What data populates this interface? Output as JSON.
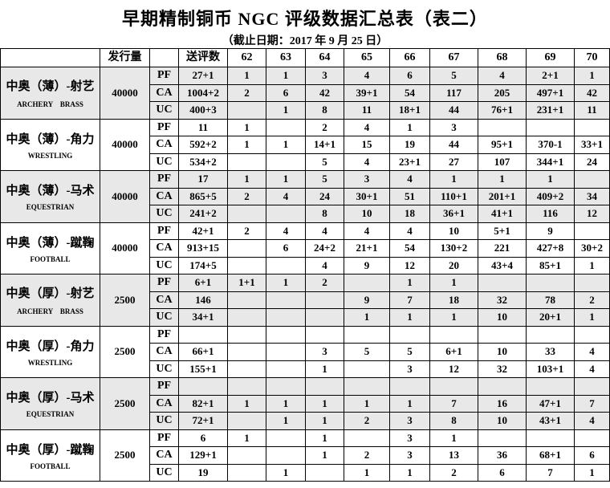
{
  "title": "早期精制铜币 NGC 评级数据汇总表（表二）",
  "subtitle": "（截止日期：2017 年 9 月 25 日）",
  "header": [
    "",
    "发行量",
    "",
    "送评数",
    "62",
    "63",
    "64",
    "65",
    "66",
    "67",
    "68",
    "69",
    "70"
  ],
  "groups": [
    {
      "name_cn": "中奥（薄）-射艺",
      "name_en": "ARCHERY　BRASS",
      "mintage": "40000",
      "rows": [
        {
          "grade": "PF",
          "cells": [
            "27+1",
            "1",
            "1",
            "3",
            "4",
            "6",
            "5",
            "4",
            "2+1",
            "1"
          ]
        },
        {
          "grade": "CA",
          "cells": [
            "1004+2",
            "2",
            "6",
            "42",
            "39+1",
            "54",
            "117",
            "205",
            "497+1",
            "42"
          ]
        },
        {
          "grade": "UC",
          "cells": [
            "400+3",
            "",
            "1",
            "8",
            "11",
            "18+1",
            "44",
            "76+1",
            "231+1",
            "11"
          ]
        }
      ]
    },
    {
      "name_cn": "中奥（薄）-角力",
      "name_en": "WRESTLING",
      "mintage": "40000",
      "rows": [
        {
          "grade": "PF",
          "cells": [
            "11",
            "1",
            "",
            "2",
            "4",
            "1",
            "3",
            "",
            "",
            ""
          ]
        },
        {
          "grade": "CA",
          "cells": [
            "592+2",
            "1",
            "1",
            "14+1",
            "15",
            "19",
            "44",
            "95+1",
            "370-1",
            "33+1"
          ]
        },
        {
          "grade": "UC",
          "cells": [
            "534+2",
            "",
            "",
            "5",
            "4",
            "23+1",
            "27",
            "107",
            "344+1",
            "24"
          ]
        }
      ]
    },
    {
      "name_cn": "中奥（薄）-马术",
      "name_en": "EQUESTRIAN",
      "mintage": "40000",
      "rows": [
        {
          "grade": "PF",
          "cells": [
            "17",
            "1",
            "1",
            "5",
            "3",
            "4",
            "1",
            "1",
            "1",
            ""
          ]
        },
        {
          "grade": "CA",
          "cells": [
            "865+5",
            "2",
            "4",
            "24",
            "30+1",
            "51",
            "110+1",
            "201+1",
            "409+2",
            "34"
          ]
        },
        {
          "grade": "UC",
          "cells": [
            "241+2",
            "",
            "",
            "8",
            "10",
            "18",
            "36+1",
            "41+1",
            "116",
            "12"
          ]
        }
      ]
    },
    {
      "name_cn": "中奥（薄）-蹴鞠",
      "name_en": "FOOTBALL",
      "mintage": "40000",
      "rows": [
        {
          "grade": "PF",
          "cells": [
            "42+1",
            "2",
            "4",
            "4",
            "4",
            "4",
            "10",
            "5+1",
            "9",
            ""
          ]
        },
        {
          "grade": "CA",
          "cells": [
            "913+15",
            "",
            "6",
            "24+2",
            "21+1",
            "54",
            "130+2",
            "221",
            "427+8",
            "30+2"
          ]
        },
        {
          "grade": "UC",
          "cells": [
            "174+5",
            "",
            "",
            "4",
            "9",
            "12",
            "20",
            "43+4",
            "85+1",
            "1"
          ]
        }
      ]
    },
    {
      "name_cn": "中奥（厚）-射艺",
      "name_en": "ARCHERY　BRASS",
      "mintage": "2500",
      "rows": [
        {
          "grade": "PF",
          "cells": [
            "6+1",
            "1+1",
            "1",
            "2",
            "",
            "1",
            "1",
            "",
            "",
            ""
          ]
        },
        {
          "grade": "CA",
          "cells": [
            "146",
            "",
            "",
            "",
            "9",
            "7",
            "18",
            "32",
            "78",
            "2"
          ]
        },
        {
          "grade": "UC",
          "cells": [
            "34+1",
            "",
            "",
            "",
            "1",
            "1",
            "1",
            "10",
            "20+1",
            "1"
          ]
        }
      ]
    },
    {
      "name_cn": "中奥（厚）-角力",
      "name_en": "WRESTLING",
      "mintage": "2500",
      "rows": [
        {
          "grade": "PF",
          "cells": [
            "",
            "",
            "",
            "",
            "",
            "",
            "",
            "",
            "",
            ""
          ]
        },
        {
          "grade": "CA",
          "cells": [
            "66+1",
            "",
            "",
            "3",
            "5",
            "5",
            "6+1",
            "10",
            "33",
            "4"
          ]
        },
        {
          "grade": "UC",
          "cells": [
            "155+1",
            "",
            "",
            "1",
            "",
            "3",
            "12",
            "32",
            "103+1",
            "4"
          ]
        }
      ]
    },
    {
      "name_cn": "中奥（厚）-马术",
      "name_en": "EQUESTRIAN",
      "mintage": "2500",
      "rows": [
        {
          "grade": "PF",
          "cells": [
            "",
            "",
            "",
            "",
            "",
            "",
            "",
            "",
            "",
            ""
          ]
        },
        {
          "grade": "CA",
          "cells": [
            "82+1",
            "1",
            "1",
            "1",
            "1",
            "1",
            "7",
            "16",
            "47+1",
            "7"
          ]
        },
        {
          "grade": "UC",
          "cells": [
            "72+1",
            "",
            "1",
            "1",
            "2",
            "3",
            "8",
            "10",
            "43+1",
            "4"
          ]
        }
      ]
    },
    {
      "name_cn": "中奥（厚）-蹴鞠",
      "name_en": "FOOTBALL",
      "mintage": "2500",
      "rows": [
        {
          "grade": "PF",
          "cells": [
            "6",
            "1",
            "",
            "1",
            "",
            "3",
            "1",
            "",
            "",
            ""
          ]
        },
        {
          "grade": "CA",
          "cells": [
            "129+1",
            "",
            "",
            "1",
            "2",
            "3",
            "13",
            "36",
            "68+1",
            "6"
          ]
        },
        {
          "grade": "UC",
          "cells": [
            "19",
            "",
            "1",
            "",
            "1",
            "1",
            "2",
            "6",
            "7",
            "1"
          ]
        }
      ]
    }
  ],
  "colors": {
    "shaded_row": "#e8e8e8",
    "border": "#000000"
  }
}
